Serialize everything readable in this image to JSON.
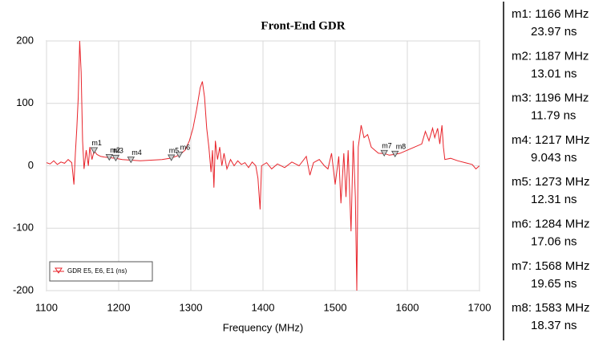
{
  "chart_data": {
    "type": "line",
    "title": "Front-End GDR",
    "x_label": "Frequency (MHz)",
    "xlim": [
      1100,
      1700
    ],
    "xticks": [
      1100,
      1200,
      1300,
      1400,
      1500,
      1600,
      1700
    ],
    "ylim": [
      -200,
      200
    ],
    "yticks": [
      -200,
      -100,
      0,
      100,
      200
    ],
    "grid": true,
    "legend": "lower left",
    "series": [
      {
        "name": "GDR E5, E6, E1 (ns)",
        "color": "#e8242b",
        "x": [
          1100,
          1105,
          1110,
          1115,
          1120,
          1125,
          1130,
          1135,
          1138,
          1140,
          1142,
          1144,
          1146,
          1148,
          1150,
          1152,
          1155,
          1158,
          1160,
          1163,
          1166,
          1170,
          1175,
          1180,
          1187,
          1196,
          1205,
          1217,
          1230,
          1245,
          1260,
          1273,
          1284,
          1292,
          1298,
          1303,
          1308,
          1313,
          1316,
          1319,
          1322,
          1325,
          1328,
          1330,
          1332,
          1334,
          1337,
          1340,
          1343,
          1346,
          1350,
          1355,
          1360,
          1365,
          1370,
          1375,
          1380,
          1385,
          1390,
          1393,
          1396,
          1398,
          1405,
          1412,
          1420,
          1430,
          1440,
          1450,
          1460,
          1465,
          1470,
          1478,
          1485,
          1490,
          1495,
          1500,
          1505,
          1508,
          1512,
          1515,
          1518,
          1522,
          1525,
          1528,
          1530,
          1532,
          1536,
          1540,
          1545,
          1550,
          1555,
          1560,
          1568,
          1575,
          1583,
          1590,
          1600,
          1610,
          1620,
          1625,
          1630,
          1635,
          1638,
          1642,
          1645,
          1648,
          1650,
          1652,
          1660,
          1670,
          1680,
          1690,
          1695,
          1700
        ],
        "values": [
          5,
          3,
          8,
          2,
          6,
          4,
          10,
          5,
          -30,
          20,
          60,
          110,
          200,
          150,
          40,
          -5,
          25,
          0,
          30,
          10,
          23.97,
          18,
          15,
          14,
          13.01,
          11.79,
          10,
          9.043,
          8,
          9,
          10,
          12.31,
          17.06,
          25,
          40,
          60,
          90,
          125,
          135,
          110,
          60,
          30,
          -10,
          25,
          -35,
          40,
          10,
          30,
          0,
          20,
          -5,
          10,
          0,
          8,
          2,
          5,
          -3,
          6,
          0,
          -20,
          -70,
          0,
          5,
          -5,
          3,
          -3,
          6,
          0,
          15,
          -15,
          5,
          10,
          0,
          -5,
          20,
          -30,
          15,
          -60,
          20,
          -50,
          25,
          -105,
          40,
          -50,
          -200,
          30,
          65,
          45,
          50,
          30,
          25,
          20,
          19.65,
          17,
          18.37,
          20,
          25,
          30,
          35,
          55,
          40,
          60,
          45,
          60,
          35,
          65,
          30,
          10,
          12,
          8,
          5,
          2,
          -5,
          0
        ]
      }
    ],
    "markers": [
      {
        "name": "m1",
        "x": 1166,
        "y": 23.97,
        "text_x": "m1: 1166 MHz",
        "text_y": "23.97 ns"
      },
      {
        "name": "m2",
        "x": 1187,
        "y": 13.01,
        "text_x": "m2: 1187 MHz",
        "text_y": "13.01 ns"
      },
      {
        "name": "m3",
        "x": 1196,
        "y": 11.79,
        "text_x": "m3: 1196 MHz",
        "text_y": "11.79 ns"
      },
      {
        "name": "m4",
        "x": 1217,
        "y": 9.043,
        "text_x": "m4: 1217 MHz",
        "text_y": "9.043 ns"
      },
      {
        "name": "m5",
        "x": 1273,
        "y": 12.31,
        "text_x": "m5: 1273 MHz",
        "text_y": "12.31 ns"
      },
      {
        "name": "m6",
        "x": 1284,
        "y": 17.06,
        "text_x": "m6: 1284 MHz",
        "text_y": "17.06 ns"
      },
      {
        "name": "m7",
        "x": 1568,
        "y": 19.65,
        "text_x": "m7: 1568 MHz",
        "text_y": "19.65 ns"
      },
      {
        "name": "m8",
        "x": 1583,
        "y": 18.37,
        "text_x": "m8: 1583 MHz",
        "text_y": "18.37 ns"
      }
    ]
  }
}
